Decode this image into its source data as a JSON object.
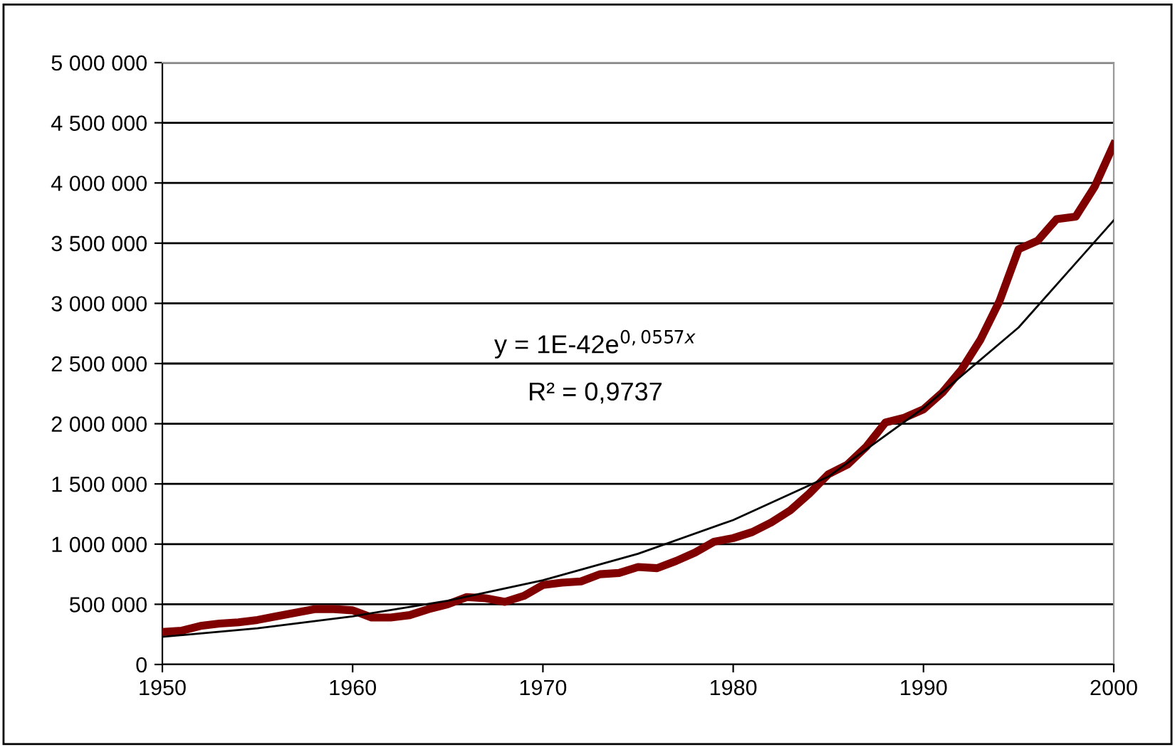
{
  "chart_data": {
    "type": "line",
    "xlim": [
      1950,
      2000
    ],
    "xticks": [
      1950,
      1960,
      1970,
      1980,
      1990,
      2000
    ],
    "ylim": [
      0,
      5000000
    ],
    "yticks": [
      {
        "value": 0,
        "label": "0"
      },
      {
        "value": 500000,
        "label": "500 000"
      },
      {
        "value": 1000000,
        "label": "1 000 000"
      },
      {
        "value": 1500000,
        "label": "1 500 000"
      },
      {
        "value": 2000000,
        "label": "2 000 000"
      },
      {
        "value": 2500000,
        "label": "2 500 000"
      },
      {
        "value": 3000000,
        "label": "3 000 000"
      },
      {
        "value": 3500000,
        "label": "3 500 000"
      },
      {
        "value": 4000000,
        "label": "4 000 000"
      },
      {
        "value": 4500000,
        "label": "4 500 000"
      },
      {
        "value": 5000000,
        "label": "5 000 000"
      }
    ],
    "grid": "y",
    "legend": false,
    "marker": "none",
    "line_style": "solid",
    "annotations": [
      "y = 1E-42e$^{0,0557x}$",
      "R² = 0,9737"
    ],
    "series": [
      {
        "color": "#800000",
        "x": [
          1950,
          1951,
          1952,
          1953,
          1954,
          1955,
          1956,
          1957,
          1958,
          1959,
          1960,
          1961,
          1962,
          1963,
          1964,
          1965,
          1966,
          1967,
          1968,
          1969,
          1970,
          1971,
          1972,
          1973,
          1974,
          1975,
          1976,
          1977,
          1978,
          1979,
          1980,
          1981,
          1982,
          1983,
          1984,
          1985,
          1986,
          1987,
          1988,
          1989,
          1990,
          1991,
          1992,
          1993,
          1994,
          1995,
          1996,
          1997,
          1998,
          1999,
          2000
        ],
        "values": [
          270000,
          280000,
          320000,
          340000,
          350000,
          370000,
          400000,
          430000,
          460000,
          460000,
          450000,
          390000,
          390000,
          410000,
          460000,
          500000,
          560000,
          550000,
          520000,
          570000,
          660000,
          680000,
          690000,
          750000,
          760000,
          810000,
          800000,
          860000,
          930000,
          1020000,
          1050000,
          1100000,
          1180000,
          1280000,
          1420000,
          1580000,
          1660000,
          1810000,
          2010000,
          2050000,
          2120000,
          2260000,
          2450000,
          2700000,
          3020000,
          3450000,
          3520000,
          3700000,
          3720000,
          3970000,
          4320000
        ]
      },
      {
        "color": "#000000",
        "x": [
          1950,
          1955,
          1960,
          1965,
          1970,
          1975,
          1980,
          1985,
          1990,
          1995,
          2000
        ],
        "values": [
          230000,
          300000,
          400000,
          530000,
          700000,
          920000,
          1200000,
          1560000,
          2130000,
          2800000,
          3690000
        ]
      }
    ]
  }
}
